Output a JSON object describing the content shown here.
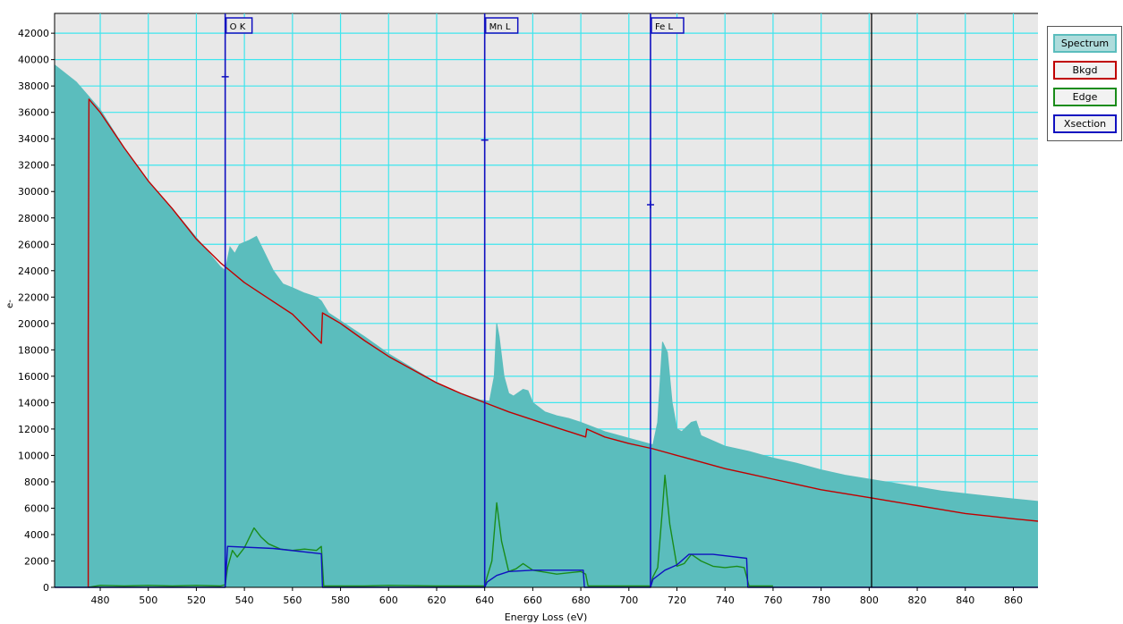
{
  "chart_data": {
    "type": "area",
    "xlabel": "Energy Loss (eV)",
    "ylabel": "e-",
    "xlim": [
      461,
      871
    ],
    "ylim": [
      0,
      43500
    ],
    "x_ticks": [
      480,
      500,
      520,
      540,
      560,
      580,
      600,
      620,
      640,
      660,
      680,
      700,
      720,
      740,
      760,
      780,
      800,
      820,
      840,
      860
    ],
    "y_ticks": [
      0,
      2000,
      4000,
      6000,
      8000,
      10000,
      12000,
      14000,
      16000,
      18000,
      20000,
      22000,
      24000,
      26000,
      28000,
      30000,
      32000,
      34000,
      36000,
      38000,
      40000,
      42000
    ],
    "grid": true,
    "legend_position": "right",
    "series": [
      {
        "name": "Spectrum",
        "color": "#5bbdbd",
        "style": "filled",
        "points": [
          [
            461,
            39600
          ],
          [
            470,
            38300
          ],
          [
            480,
            36200
          ],
          [
            490,
            33300
          ],
          [
            500,
            30800
          ],
          [
            510,
            28700
          ],
          [
            520,
            26500
          ],
          [
            530,
            24300
          ],
          [
            532,
            24000
          ],
          [
            534,
            25800
          ],
          [
            536,
            25300
          ],
          [
            538,
            26000
          ],
          [
            542,
            26300
          ],
          [
            545,
            26600
          ],
          [
            548,
            25500
          ],
          [
            552,
            24000
          ],
          [
            556,
            23000
          ],
          [
            560,
            22700
          ],
          [
            565,
            22300
          ],
          [
            570,
            22000
          ],
          [
            572,
            21700
          ],
          [
            575,
            20800
          ],
          [
            580,
            20200
          ],
          [
            590,
            19000
          ],
          [
            600,
            17700
          ],
          [
            610,
            16600
          ],
          [
            620,
            15500
          ],
          [
            630,
            14700
          ],
          [
            638,
            14200
          ],
          [
            642,
            14100
          ],
          [
            644,
            16000
          ],
          [
            645,
            20000
          ],
          [
            646,
            19000
          ],
          [
            648,
            16000
          ],
          [
            650,
            14700
          ],
          [
            652,
            14500
          ],
          [
            656,
            15000
          ],
          [
            658,
            14900
          ],
          [
            660,
            14000
          ],
          [
            665,
            13300
          ],
          [
            670,
            13000
          ],
          [
            675,
            12800
          ],
          [
            680,
            12500
          ],
          [
            690,
            11800
          ],
          [
            700,
            11300
          ],
          [
            708,
            10900
          ],
          [
            710,
            10800
          ],
          [
            712,
            12500
          ],
          [
            714,
            18600
          ],
          [
            716,
            17800
          ],
          [
            718,
            14000
          ],
          [
            720,
            12000
          ],
          [
            722,
            11800
          ],
          [
            726,
            12500
          ],
          [
            728,
            12600
          ],
          [
            730,
            11500
          ],
          [
            740,
            10700
          ],
          [
            750,
            10300
          ],
          [
            760,
            9800
          ],
          [
            770,
            9400
          ],
          [
            780,
            8900
          ],
          [
            790,
            8500
          ],
          [
            800,
            8200
          ],
          [
            810,
            7900
          ],
          [
            820,
            7600
          ],
          [
            830,
            7300
          ],
          [
            840,
            7100
          ],
          [
            850,
            6900
          ],
          [
            860,
            6700
          ],
          [
            871,
            6500
          ]
        ]
      },
      {
        "name": "Bkgd",
        "color": "#c00000",
        "style": "line",
        "points": [
          [
            475,
            0
          ],
          [
            475,
            18500
          ],
          [
            475.3,
            37000
          ],
          [
            480,
            36000
          ],
          [
            490,
            33300
          ],
          [
            500,
            30800
          ],
          [
            510,
            28700
          ],
          [
            520,
            26400
          ],
          [
            530,
            24600
          ],
          [
            540,
            23100
          ],
          [
            550,
            21900
          ],
          [
            560,
            20700
          ],
          [
            572,
            18500
          ],
          [
            572.5,
            20800
          ],
          [
            580,
            20000
          ],
          [
            590,
            18700
          ],
          [
            600,
            17500
          ],
          [
            610,
            16500
          ],
          [
            620,
            15500
          ],
          [
            630,
            14700
          ],
          [
            640,
            14000
          ],
          [
            650,
            13300
          ],
          [
            660,
            12700
          ],
          [
            670,
            12100
          ],
          [
            682,
            11400
          ],
          [
            682.5,
            12000
          ],
          [
            690,
            11400
          ],
          [
            700,
            10900
          ],
          [
            710,
            10500
          ],
          [
            720,
            10000
          ],
          [
            730,
            9500
          ],
          [
            740,
            9000
          ],
          [
            750,
            8600
          ],
          [
            760,
            8200
          ],
          [
            770,
            7800
          ],
          [
            780,
            7400
          ],
          [
            790,
            7100
          ],
          [
            800,
            6800
          ],
          [
            810,
            6500
          ],
          [
            820,
            6200
          ],
          [
            830,
            5900
          ],
          [
            840,
            5600
          ],
          [
            850,
            5400
          ],
          [
            860,
            5200
          ],
          [
            871,
            5000
          ]
        ]
      },
      {
        "name": "Edge",
        "color": "#1a8c1a",
        "style": "line",
        "points": [
          [
            475,
            0
          ],
          [
            480,
            150
          ],
          [
            490,
            100
          ],
          [
            500,
            150
          ],
          [
            510,
            100
          ],
          [
            520,
            150
          ],
          [
            530,
            100
          ],
          [
            532,
            200
          ],
          [
            533,
            1500
          ],
          [
            535,
            2800
          ],
          [
            537,
            2300
          ],
          [
            540,
            3000
          ],
          [
            544,
            4500
          ],
          [
            547,
            3800
          ],
          [
            550,
            3300
          ],
          [
            555,
            2900
          ],
          [
            560,
            2800
          ],
          [
            565,
            2900
          ],
          [
            570,
            2800
          ],
          [
            572,
            3100
          ],
          [
            573,
            100
          ],
          [
            590,
            100
          ],
          [
            600,
            150
          ],
          [
            620,
            100
          ],
          [
            640,
            100
          ],
          [
            641,
            800
          ],
          [
            643,
            2000
          ],
          [
            645,
            6400
          ],
          [
            647,
            3500
          ],
          [
            650,
            1200
          ],
          [
            653,
            1400
          ],
          [
            656,
            1800
          ],
          [
            660,
            1300
          ],
          [
            670,
            1000
          ],
          [
            680,
            1200
          ],
          [
            682,
            1000
          ],
          [
            683,
            100
          ],
          [
            700,
            100
          ],
          [
            709,
            100
          ],
          [
            710,
            800
          ],
          [
            712,
            1500
          ],
          [
            714,
            6000
          ],
          [
            715,
            8500
          ],
          [
            717,
            4800
          ],
          [
            720,
            1600
          ],
          [
            723,
            1800
          ],
          [
            726,
            2500
          ],
          [
            730,
            2000
          ],
          [
            735,
            1600
          ],
          [
            740,
            1500
          ],
          [
            745,
            1600
          ],
          [
            748,
            1500
          ],
          [
            750,
            100
          ],
          [
            760,
            100
          ]
        ]
      },
      {
        "name": "Xsection",
        "color": "#1010c0",
        "style": "line",
        "points": [
          [
            461,
            0
          ],
          [
            532,
            0
          ],
          [
            532,
            0
          ],
          [
            533,
            3100
          ],
          [
            552,
            2950
          ],
          [
            572,
            2550
          ],
          [
            572.5,
            0
          ],
          [
            640,
            0
          ],
          [
            641,
            400
          ],
          [
            645,
            900
          ],
          [
            650,
            1200
          ],
          [
            660,
            1300
          ],
          [
            670,
            1300
          ],
          [
            681,
            1300
          ],
          [
            681.5,
            0
          ],
          [
            709,
            0
          ],
          [
            710,
            600
          ],
          [
            715,
            1300
          ],
          [
            720,
            1700
          ],
          [
            725,
            2500
          ],
          [
            735,
            2500
          ],
          [
            749,
            2200
          ],
          [
            749.5,
            0
          ],
          [
            871,
            0
          ]
        ]
      }
    ],
    "edge_markers": [
      {
        "label": "O K",
        "x": 532,
        "marker_y": 38700
      },
      {
        "label": "Mn L",
        "x": 640,
        "marker_y": 33900
      },
      {
        "label": "Fe L",
        "x": 709,
        "marker_y": 29000
      }
    ],
    "cursor_x": 801
  },
  "legend": {
    "items": [
      {
        "label": "Spectrum",
        "bg": "#aedcdc",
        "border": "#5bbdbd"
      },
      {
        "label": "Bkgd",
        "bg": "#f2f2f2",
        "border": "#c00000"
      },
      {
        "label": "Edge",
        "bg": "#f2f2f2",
        "border": "#1a8c1a"
      },
      {
        "label": "Xsection",
        "bg": "#f2f2f2",
        "border": "#1010c0"
      }
    ]
  }
}
